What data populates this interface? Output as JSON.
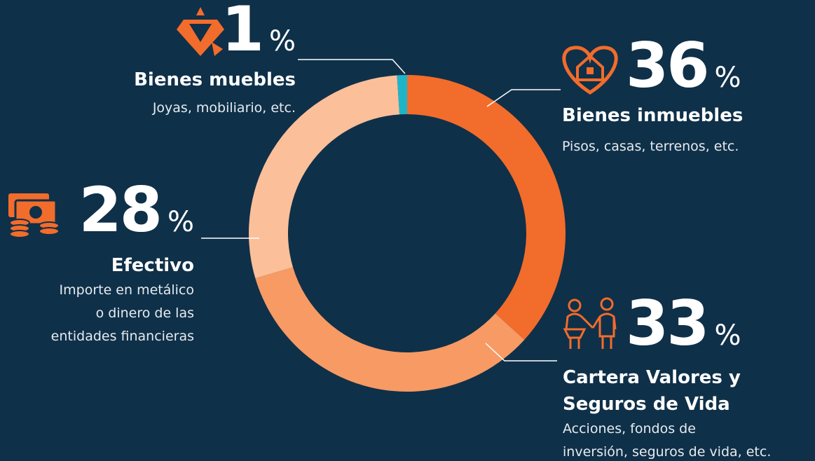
{
  "chart_data": {
    "type": "pie",
    "donut": true,
    "categories": [
      "Bienes inmuebles",
      "Cartera Valores y Seguros de Vida",
      "Efectivo",
      "Bienes muebles"
    ],
    "values": [
      36,
      33,
      28,
      1
    ],
    "colors": [
      "#f26c2b",
      "#f79a64",
      "#fbbf99",
      "#1fb5c9"
    ],
    "unit": "%",
    "descriptions": [
      [
        "Pisos, casas, terrenos, etc."
      ],
      [
        "Acciones, fondos de",
        "inversión, seguros de vida, etc."
      ],
      [
        "Importe en metálico",
        "o dinero de las",
        "entidades financieras"
      ],
      [
        "Joyas, mobiliario, etc."
      ]
    ]
  }
}
